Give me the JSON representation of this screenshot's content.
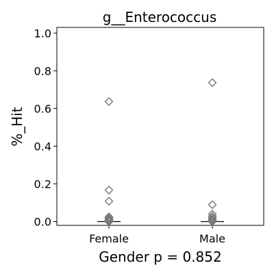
{
  "chart_data": {
    "type": "scatter",
    "title": "g__Enterococcus",
    "ylabel": "%_Hit",
    "xlabel": "Gender p = 0.852",
    "categories": [
      "Female",
      "Male"
    ],
    "ylim": [
      -0.02,
      1.03
    ],
    "yticks": [
      "0.0",
      "0.2",
      "0.4",
      "0.6",
      "0.8",
      "1.0"
    ],
    "grid": false,
    "series": [
      {
        "category": "Female",
        "median": 0.0,
        "points": [
          0.637,
          0.167,
          0.108,
          0.025,
          0.018,
          0.012,
          0.008,
          0.005,
          0.002,
          0.0,
          0.0
        ]
      },
      {
        "category": "Male",
        "median": 0.0,
        "points": [
          0.737,
          0.09,
          0.04,
          0.028,
          0.02,
          0.012,
          0.006,
          0.003,
          0.0,
          0.0
        ]
      }
    ],
    "colors": {
      "marker": "#777777",
      "axis": "#000000"
    }
  }
}
